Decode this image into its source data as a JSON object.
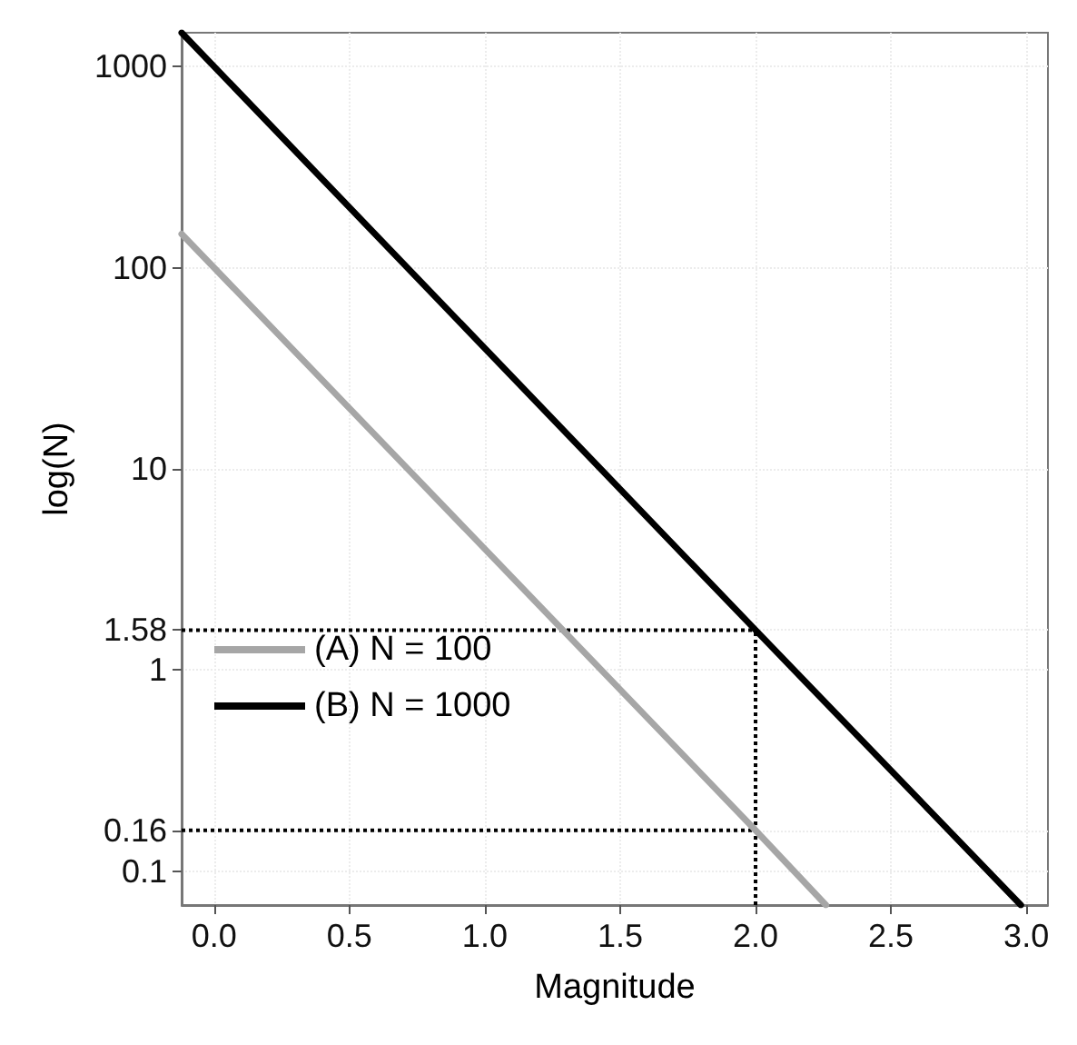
{
  "chart_data": {
    "type": "line",
    "xlabel": "Magnitude",
    "ylabel": "log(N)",
    "log": "y",
    "xlim": [
      -0.12,
      3.08
    ],
    "xticks": [
      {
        "value": 0,
        "label": "0.0"
      },
      0.5,
      {
        "value": 1,
        "label": "1.0"
      },
      1.5,
      {
        "value": 2,
        "label": "2.0"
      },
      2.5,
      {
        "value": 3,
        "label": "3.0"
      }
    ],
    "ylim": [
      0.068,
      1470
    ],
    "yticks": [
      0.1,
      0.16,
      1,
      1.58,
      10,
      100,
      1000
    ],
    "grid": true,
    "legend": "left",
    "marker": "none",
    "line_style": "solid",
    "series": [
      {
        "name": "(A) N = 100",
        "color": "#a6a6a6",
        "x": [
          -0.12,
          2.0,
          2.26
        ],
        "values": [
          147,
          0.16,
          0.068
        ]
      },
      {
        "name": "(B) N = 1000",
        "color": "#000000",
        "x": [
          -0.12,
          2.0,
          2.98
        ],
        "values": [
          1470,
          1.58,
          0.068
        ]
      }
    ],
    "ref_lines": [
      {
        "axis": "y",
        "value": 1.58,
        "color": "#000000",
        "line_style": "dotted"
      },
      {
        "axis": "y",
        "value": 0.16,
        "color": "#000000",
        "line_style": "dotted"
      },
      {
        "axis": "x",
        "value": 2.0,
        "color": "#000000",
        "line_style": "dotted"
      }
    ]
  }
}
